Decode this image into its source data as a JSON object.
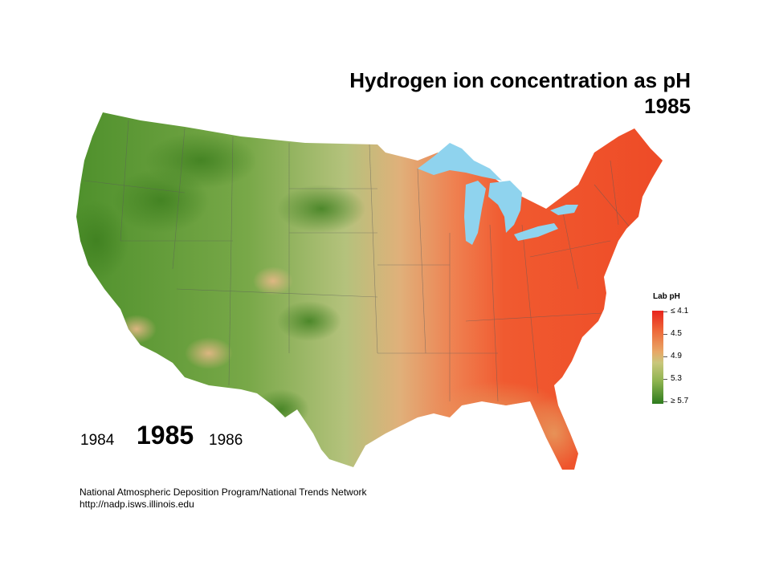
{
  "map": {
    "title_line1": "Hydrogen ion concentration as pH",
    "title_line2": "1985",
    "year_nav": {
      "previous": "1984",
      "current": "1985",
      "next": "1986"
    },
    "legend": {
      "title": "Lab pH",
      "labels": [
        "≤ 4.1",
        "4.5",
        "4.9",
        "5.3",
        "≥ 5.7"
      ],
      "colors": {
        "acidic": "#e8241d",
        "mid_high": "#ee6a3a",
        "mid": "#e8a766",
        "mid_low": "#c9c77c",
        "less_acidic": "#8db34f",
        "neutral": "#2e7b1e"
      }
    },
    "water_color": "#8fd3ee",
    "credits": {
      "line1": "National Atmospheric Deposition Program/National Trends Network",
      "line2": "http://nadp.isws.illinois.edu"
    }
  }
}
